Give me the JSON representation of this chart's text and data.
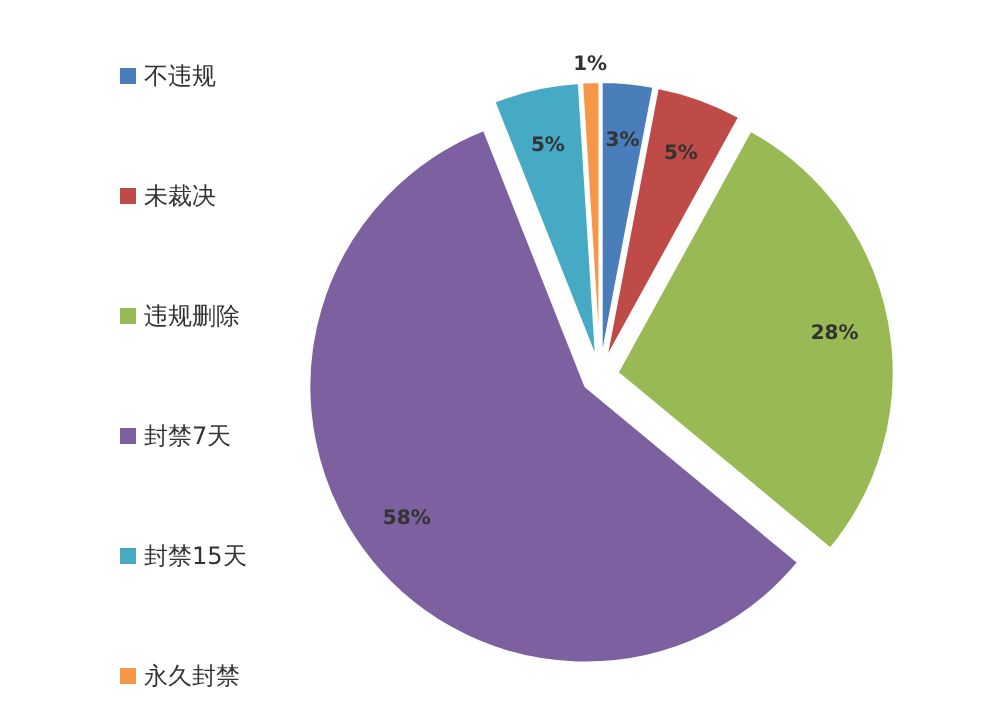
{
  "chart_data": {
    "type": "pie",
    "categories": [
      "不违规",
      "未裁决",
      "违规删除",
      "封禁7天",
      "封禁15天",
      "永久封禁"
    ],
    "values": [
      3,
      5,
      28,
      58,
      5,
      1
    ],
    "colors": [
      "#4a7ebb",
      "#be4b48",
      "#98b954",
      "#7d60a0",
      "#46aac5",
      "#f79646"
    ],
    "value_labels": [
      "3%",
      "5%",
      "28%",
      "58%",
      "5%",
      "1%"
    ],
    "legend": "left"
  }
}
